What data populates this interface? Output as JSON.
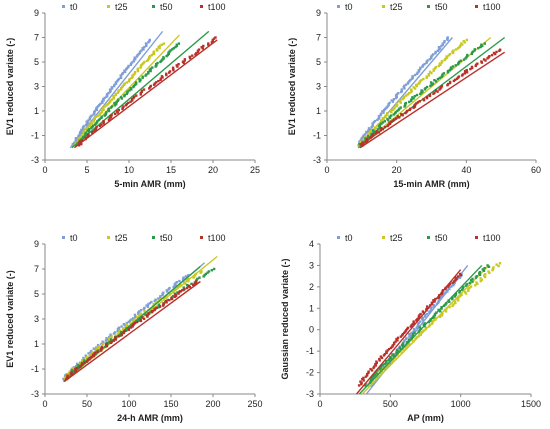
{
  "colors": {
    "t0": "#7f9ed8",
    "t25": "#c8c820",
    "t50": "#2a9a4a",
    "t100": "#b8302a"
  },
  "chart_data": [
    {
      "type": "scatter",
      "xlabel": "5-min AMR (mm)",
      "ylabel": "EV1 reduced variate (-)",
      "xlim": [
        0,
        25
      ],
      "ylim": [
        -3,
        9
      ],
      "xticks": [
        "0",
        "5",
        "10",
        "15",
        "20",
        "25"
      ],
      "yticks": [
        "-3",
        "-1",
        "1",
        "3",
        "5",
        "7",
        "9"
      ],
      "legend": "top",
      "series": [
        {
          "name": "t0",
          "color": "#7f9ed8",
          "x_range": [
            3.3,
            12.5
          ],
          "y_range": [
            -1.8,
            6.8
          ],
          "points": 90,
          "fit": [
            [
              3.0,
              -2.0
            ],
            [
              14.0,
              7.5
            ]
          ]
        },
        {
          "name": "t25",
          "color": "#c8c820",
          "x_range": [
            3.6,
            14.0
          ],
          "y_range": [
            -1.8,
            6.5
          ],
          "points": 90,
          "fit": [
            [
              3.2,
              -2.0
            ],
            [
              16.0,
              7.2
            ]
          ]
        },
        {
          "name": "t50",
          "color": "#2a9a4a",
          "x_range": [
            3.8,
            16.0
          ],
          "y_range": [
            -1.8,
            6.5
          ],
          "points": 90,
          "fit": [
            [
              3.2,
              -2.0
            ],
            [
              19.5,
              7.5
            ]
          ]
        },
        {
          "name": "t100",
          "color": "#b8302a",
          "x_range": [
            4.0,
            20.5
          ],
          "y_range": [
            -1.8,
            7.0
          ],
          "points": 90,
          "fit": [
            [
              3.5,
              -2.0
            ],
            [
              20.5,
              6.8
            ]
          ]
        }
      ]
    },
    {
      "type": "scatter",
      "xlabel": "15-min AMR (mm)",
      "ylabel": "EV1 reduced variate (-)",
      "xlim": [
        0,
        60
      ],
      "ylim": [
        -3,
        9
      ],
      "xticks": [
        "0",
        "20",
        "40",
        "60"
      ],
      "yticks": [
        "-3",
        "-1",
        "1",
        "3",
        "5",
        "7",
        "9"
      ],
      "legend": "top",
      "series": [
        {
          "name": "t0",
          "color": "#7f9ed8",
          "x_range": [
            9.0,
            35.0
          ],
          "y_range": [
            -1.8,
            7.0
          ],
          "points": 90,
          "fit": [
            [
              9.0,
              -2.0
            ],
            [
              36.0,
              7.0
            ]
          ]
        },
        {
          "name": "t25",
          "color": "#c8c820",
          "x_range": [
            9.5,
            40.0
          ],
          "y_range": [
            -1.8,
            6.8
          ],
          "points": 90,
          "fit": [
            [
              9.0,
              -2.0
            ],
            [
              47.0,
              7.0
            ]
          ]
        },
        {
          "name": "t50",
          "color": "#2a9a4a",
          "x_range": [
            9.5,
            45.0
          ],
          "y_range": [
            -1.8,
            6.5
          ],
          "points": 90,
          "fit": [
            [
              9.0,
              -2.0
            ],
            [
              51.0,
              7.0
            ]
          ]
        },
        {
          "name": "t100",
          "color": "#b8302a",
          "x_range": [
            10.0,
            50.0
          ],
          "y_range": [
            -1.8,
            6.0
          ],
          "points": 90,
          "fit": [
            [
              9.5,
              -2.0
            ],
            [
              51.0,
              5.8
            ]
          ]
        }
      ]
    },
    {
      "type": "scatter",
      "xlabel": "24-h AMR (mm)",
      "ylabel": "EV1 reduced variate (-)",
      "xlim": [
        0,
        250
      ],
      "ylim": [
        -3,
        9
      ],
      "xticks": [
        "0",
        "50",
        "100",
        "150",
        "200",
        "250"
      ],
      "yticks": [
        "-3",
        "-1",
        "1",
        "3",
        "5",
        "7",
        "9"
      ],
      "legend": "top",
      "series": [
        {
          "name": "t0",
          "color": "#7f9ed8",
          "x_range": [
            22,
            170
          ],
          "y_range": [
            -1.8,
            6.5
          ],
          "points": 90,
          "fit": [
            [
              22,
              -2.0
            ],
            [
              190,
              7.5
            ]
          ]
        },
        {
          "name": "t25",
          "color": "#c8c820",
          "x_range": [
            23,
            185
          ],
          "y_range": [
            -1.8,
            6.8
          ],
          "points": 90,
          "fit": [
            [
              22,
              -2.0
            ],
            [
              205,
              8.0
            ]
          ]
        },
        {
          "name": "t50",
          "color": "#2a9a4a",
          "x_range": [
            24,
            200
          ],
          "y_range": [
            -1.8,
            7.0
          ],
          "points": 90,
          "fit": [
            [
              22,
              -2.0
            ],
            [
              185,
              7.2
            ]
          ]
        },
        {
          "name": "t100",
          "color": "#b8302a",
          "x_range": [
            25,
            180
          ],
          "y_range": [
            -1.8,
            6.0
          ],
          "points": 90,
          "fit": [
            [
              23,
              -2.0
            ],
            [
              185,
              6.0
            ]
          ]
        }
      ]
    },
    {
      "type": "scatter",
      "xlabel": "AP (mm)",
      "ylabel": "Gaussian reduced variate (-)",
      "xlim": [
        0,
        1500
      ],
      "ylim": [
        -3,
        4
      ],
      "xticks": [
        "0",
        "500",
        "1000",
        "1500"
      ],
      "yticks": [
        "-3",
        "-2",
        "-1",
        "0",
        "1",
        "2",
        "3",
        "4"
      ],
      "legend": "top",
      "series": [
        {
          "name": "t0",
          "color": "#7f9ed8",
          "x_range": [
            370,
            1010
          ],
          "y_range": [
            -2.6,
            2.6
          ],
          "points": 90,
          "fit": [
            [
              330,
              -3.0
            ],
            [
              1050,
              3.0
            ]
          ]
        },
        {
          "name": "t25",
          "color": "#c8c820",
          "x_range": [
            350,
            1280
          ],
          "y_range": [
            -2.6,
            3.1
          ],
          "points": 90,
          "fit": [
            [
              300,
              -3.0
            ],
            [
              1200,
              3.0
            ]
          ]
        },
        {
          "name": "t50",
          "color": "#2a9a4a",
          "x_range": [
            330,
            1200
          ],
          "y_range": [
            -2.6,
            3.0
          ],
          "points": 90,
          "fit": [
            [
              280,
              -3.0
            ],
            [
              1150,
              3.0
            ]
          ]
        },
        {
          "name": "t100",
          "color": "#b8302a",
          "x_range": [
            280,
            1000
          ],
          "y_range": [
            -2.6,
            2.6
          ],
          "points": 90,
          "fit": [
            [
              260,
              -3.0
            ],
            [
              1000,
              2.8
            ]
          ]
        }
      ]
    }
  ]
}
